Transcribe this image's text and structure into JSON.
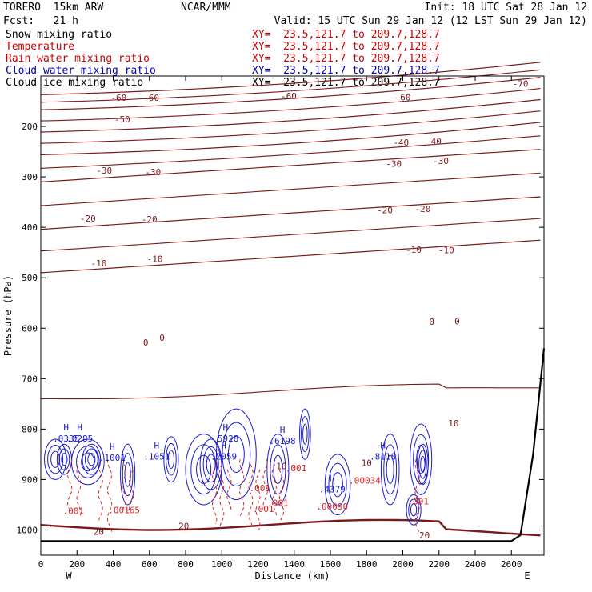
{
  "header": {
    "model": "TORERO  15km ARW",
    "org": "NCAR/MMM",
    "init": "Init: 18 UTC Sat 28 Jan 12",
    "fcst": "Fcst:   21 h",
    "valid": "Valid: 15 UTC Sun 29 Jan 12 (12 LST Sun 29 Jan 12)"
  },
  "legend": [
    {
      "name": "Snow mixing ratio",
      "xy": "XY=  23.5,121.7 to 209.7,128.7",
      "color": "#000000"
    },
    {
      "name": "Temperature",
      "xy": "XY=  23.5,121.7 to 209.7,128.7",
      "color": "#cc0000"
    },
    {
      "name": "Rain water mixing ratio",
      "xy": "XY=  23.5,121.7 to 209.7,128.7",
      "color": "#cc0000"
    },
    {
      "name": "Cloud water mixing ratio",
      "xy": "XY=  23.5,121.7 to 209.7,128.7",
      "color": "#0000aa"
    },
    {
      "name": "Cloud ice mixing ratio",
      "xy": "XY=  23.5,121.7 to 209.7,128.7",
      "color": "#000000"
    }
  ],
  "chart_data": {
    "type": "contour cross-section",
    "xlabel": "Distance (km)",
    "ylabel": "Pressure (hPa)",
    "xlim": [
      0,
      2780
    ],
    "ylim": [
      1050,
      100
    ],
    "x_ticks": [
      0,
      200,
      400,
      600,
      800,
      1000,
      1200,
      1400,
      1600,
      1800,
      2000,
      2200,
      2400,
      2600
    ],
    "y_ticks": [
      200,
      300,
      400,
      500,
      600,
      700,
      800,
      900,
      1000
    ],
    "endpoints": {
      "left": "W",
      "right": "E"
    },
    "temperature_contours": [
      {
        "level": -70,
        "labels": [
          {
            "x": 2650,
            "p": 115
          }
        ]
      },
      {
        "level": -60,
        "labels": [
          {
            "x": 430,
            "p": 143
          },
          {
            "x": 610,
            "p": 143
          },
          {
            "x": 1370,
            "p": 140
          },
          {
            "x": 2000,
            "p": 142
          }
        ]
      },
      {
        "level": -50,
        "labels": [
          {
            "x": 450,
            "p": 186
          }
        ]
      },
      {
        "level": -40,
        "labels": [
          {
            "x": 1990,
            "p": 232
          },
          {
            "x": 2170,
            "p": 229
          }
        ]
      },
      {
        "level": -30,
        "labels": [
          {
            "x": 350,
            "p": 287
          },
          {
            "x": 620,
            "p": 290
          },
          {
            "x": 1950,
            "p": 274
          },
          {
            "x": 2210,
            "p": 268
          }
        ]
      },
      {
        "level": -20,
        "labels": [
          {
            "x": 260,
            "p": 382
          },
          {
            "x": 600,
            "p": 384
          },
          {
            "x": 1900,
            "p": 366
          },
          {
            "x": 2110,
            "p": 363
          }
        ]
      },
      {
        "level": -10,
        "labels": [
          {
            "x": 320,
            "p": 471
          },
          {
            "x": 630,
            "p": 462
          },
          {
            "x": 2060,
            "p": 444
          },
          {
            "x": 2240,
            "p": 445
          }
        ]
      },
      {
        "level": 0,
        "labels": [
          {
            "x": 580,
            "p": 628
          },
          {
            "x": 670,
            "p": 619
          },
          {
            "x": 2160,
            "p": 587
          },
          {
            "x": 2300,
            "p": 586
          }
        ]
      },
      {
        "level": 10,
        "labels": [
          {
            "x": 1330,
            "p": 873
          },
          {
            "x": 1800,
            "p": 867
          },
          {
            "x": 2280,
            "p": 788
          }
        ]
      },
      {
        "level": 20,
        "labels": [
          {
            "x": 320,
            "p": 1003
          },
          {
            "x": 790,
            "p": 992
          },
          {
            "x": 2120,
            "p": 1010
          }
        ]
      }
    ],
    "max_labels": [
      {
        "x": 140,
        "p": 822,
        "value": ".0335"
      },
      {
        "x": 215,
        "p": 822,
        "value": ".0285"
      },
      {
        "x": 395,
        "p": 860,
        "value": ".1001"
      },
      {
        "x": 640,
        "p": 857,
        "value": ".1051"
      },
      {
        "x": 1020,
        "p": 822,
        "value": ".5928"
      },
      {
        "x": 1010,
        "p": 857,
        "value": ".2059"
      },
      {
        "x": 1335,
        "p": 826,
        "value": ".6198"
      },
      {
        "x": 1890,
        "p": 857,
        "value": ".8118"
      },
      {
        "x": 1610,
        "p": 922,
        "value": ".4379"
      }
    ],
    "rain_labels": [
      {
        "x": 460,
        "p": 960,
        "value": ".00165"
      },
      {
        "x": 1790,
        "p": 902,
        "value": ".00034"
      },
      {
        "x": 1610,
        "p": 953,
        "value": ".00090"
      },
      {
        "x": 180,
        "p": 962,
        "value": ".001"
      },
      {
        "x": 1210,
        "p": 917,
        "value": ".001"
      },
      {
        "x": 1310,
        "p": 946,
        "value": ".001"
      },
      {
        "x": 1230,
        "p": 958,
        "value": ".001"
      },
      {
        "x": 2085,
        "p": 943,
        "value": ".001"
      },
      {
        "x": 1410,
        "p": 877,
        "value": ".001"
      }
    ],
    "ground_pressure": 1022
  }
}
